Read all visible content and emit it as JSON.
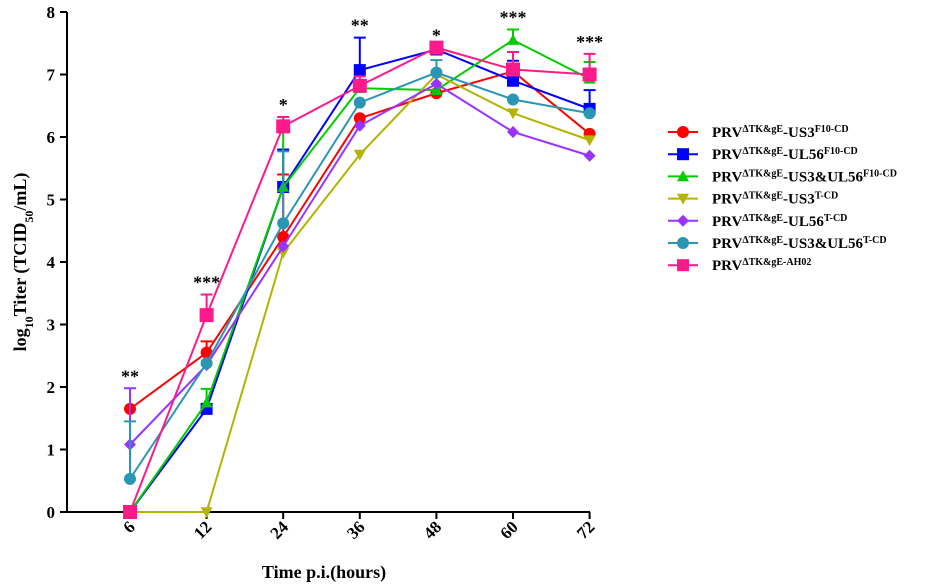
{
  "chart_data": {
    "type": "line",
    "title": "",
    "xlabel": "Time p.i.(hours)",
    "ylabel": {
      "prefix": "log",
      "sub1": "10",
      "mid": "Titer (TCID",
      "sub2": "50",
      "suffix": "/mL)"
    },
    "categories": [
      "6",
      "12",
      "24",
      "36",
      "48",
      "60",
      "72"
    ],
    "ylim": [
      0,
      8
    ],
    "yticks": [
      "0",
      "1",
      "2",
      "3",
      "4",
      "5",
      "6",
      "7",
      "8"
    ],
    "significance": [
      "**",
      "***",
      "*",
      "**",
      "*",
      "***",
      "***"
    ],
    "legend_position": "right",
    "series": [
      {
        "name": "PRV",
        "sup": "ΔTK&gE",
        "mid": "-US3",
        "sup2": "F10-CD",
        "color": "#ff0000",
        "marker": "circle",
        "values": [
          1.65,
          2.55,
          4.4,
          6.3,
          6.7,
          7.05,
          6.05
        ],
        "errors": [
          0.0,
          0.18,
          1.0,
          0.0,
          0.0,
          0.0,
          0.0
        ]
      },
      {
        "name": "PRV",
        "sup": "ΔTK&gE",
        "mid": "-UL56",
        "sup2": "F10-CD",
        "color": "#0000ff",
        "marker": "square",
        "values": [
          0.0,
          1.65,
          5.2,
          7.07,
          7.4,
          6.9,
          6.45
        ],
        "errors": [
          0.0,
          0.0,
          0.6,
          0.52,
          0.0,
          0.32,
          0.3
        ]
      },
      {
        "name": "PRV",
        "sup": "ΔTK&gE",
        "mid": "-US3&UL56",
        "sup2": "F10-CD",
        "color": "#00cc00",
        "marker": "triangle",
        "values": [
          0.0,
          1.75,
          5.2,
          6.78,
          6.75,
          7.55,
          6.93
        ],
        "errors": [
          0.0,
          0.22,
          0.98,
          0.0,
          0.0,
          0.17,
          0.27
        ]
      },
      {
        "name": "PRV",
        "sup": "ΔTK&gE",
        "mid": "-US3",
        "sup2": "T-CD",
        "color": "#b3b300",
        "marker": "triangle-down",
        "values": [
          0.0,
          0.0,
          4.15,
          5.72,
          7.0,
          6.38,
          5.95
        ],
        "errors": [
          0.0,
          0.0,
          0.0,
          0.0,
          0.0,
          0.0,
          0.0
        ]
      },
      {
        "name": "PRV",
        "sup": "ΔTK&gE",
        "mid": "-UL56",
        "sup2": "T-CD",
        "color": "#9933ff",
        "marker": "diamond",
        "values": [
          1.08,
          2.35,
          4.25,
          6.18,
          6.85,
          6.08,
          5.7
        ],
        "errors": [
          0.9,
          0.0,
          0.0,
          0.0,
          0.0,
          0.0,
          0.0
        ]
      },
      {
        "name": "PRV",
        "sup": "ΔTK&gE",
        "mid": "-US3&UL56",
        "sup2": "T-CD",
        "color": "#2a96b4",
        "marker": "circle",
        "values": [
          0.53,
          2.38,
          4.62,
          6.55,
          7.03,
          6.6,
          6.38
        ],
        "errors": [
          0.92,
          0.0,
          1.15,
          0.0,
          0.2,
          0.0,
          0.0
        ]
      },
      {
        "name": "PRV",
        "sup": "ΔTK&gE-AH02",
        "mid": "",
        "sup2": "",
        "color": "#ff1a8c",
        "marker": "square",
        "values": [
          0.0,
          3.15,
          6.17,
          6.82,
          7.43,
          7.08,
          7.0
        ],
        "errors": [
          0.0,
          0.33,
          0.15,
          0.15,
          0.0,
          0.28,
          0.33
        ]
      }
    ]
  }
}
